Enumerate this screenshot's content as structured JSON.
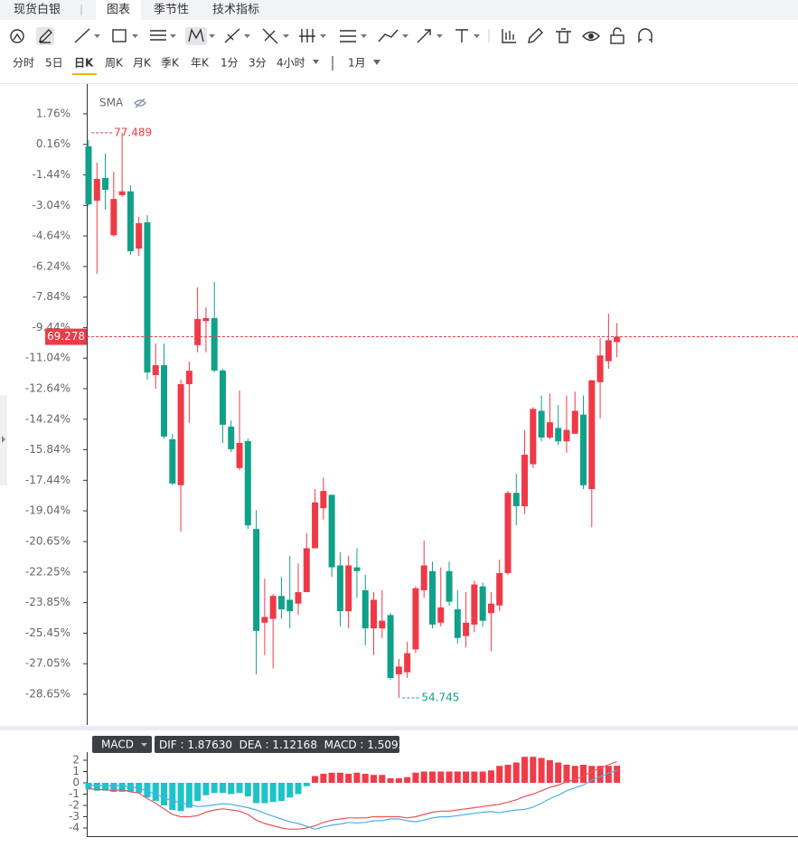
{
  "tabs": [
    "现货白银",
    "图表",
    "季节性",
    "技术指标"
  ],
  "periods": [
    "分时",
    "5日",
    "日K",
    "周K",
    "月K",
    "季K",
    "年K",
    "1分",
    "3分",
    "4小时"
  ],
  "range": "1月",
  "chart_data": [
    {
      "type": "candlestick",
      "indicator": "SMA",
      "up_color": "#ee3a47",
      "down_color": "#10a189",
      "open": [
        0.06,
        -2.79,
        -1.6,
        -4.6,
        -2.5,
        -2.3,
        -5.3,
        -3.92,
        -11.93,
        -11.41,
        -15.29,
        -17.7,
        -12.4,
        -10.36,
        -9.1,
        -8.94,
        -11.69,
        -14.63,
        -16.8,
        -15.39,
        -19.99,
        -24.9,
        -24.7,
        -23.5,
        -23.7,
        -23.9,
        -23.3,
        -21.0,
        -18.9,
        -18.2,
        -21.9,
        -24.3,
        -22.0,
        -23.2,
        -25.2,
        -25.2,
        -24.5,
        -27.6,
        -27.5,
        -26.3,
        -23.2,
        -22.2,
        -24.9,
        -22.2,
        -24.2,
        -25.6,
        -25.0,
        -23.0,
        -24.4,
        -24.0,
        -22.3,
        -18.1,
        -18.8,
        -16.6,
        -13.8,
        -15.2,
        -14.7,
        -15.4,
        -15.0,
        -14.0,
        -17.9,
        -12.3,
        -11.2,
        -10.2
      ],
      "close": [
        -2.98,
        -1.65,
        -2.22,
        -2.7,
        -2.3,
        -5.44,
        -3.97,
        -11.79,
        -11.41,
        -15.15,
        -17.61,
        -12.4,
        -11.7,
        -8.99,
        -8.94,
        -11.69,
        -14.53,
        -15.81,
        -15.48,
        -19.8,
        -25.33,
        -24.6,
        -23.5,
        -24.2,
        -24.3,
        -23.3,
        -21.0,
        -18.6,
        -18.0,
        -22.0,
        -24.3,
        -21.9,
        -22.2,
        -25.2,
        -23.7,
        -24.8,
        -27.8,
        -27.2,
        -26.5,
        -23.1,
        -21.9,
        -25.0,
        -24.1,
        -23.8,
        -25.7,
        -24.9,
        -22.9,
        -24.8,
        -23.9,
        -22.3,
        -18.1,
        -18.8,
        -16.1,
        -13.7,
        -15.2,
        -14.4,
        -15.4,
        -14.8,
        -13.8,
        -17.7,
        -12.2,
        -10.9,
        -10.1,
        -9.92
      ],
      "high": [
        0.39,
        -0.8,
        -0.32,
        -1.27,
        0.77,
        -1.98,
        -3.64,
        -3.55,
        -10.27,
        -10.27,
        -15.01,
        -12.17,
        -11.22,
        -7.33,
        -8.38,
        -7.05,
        -11.6,
        -14.3,
        -12.74,
        -15.25,
        -19.0,
        -22.6,
        -23.4,
        -22.5,
        -21.4,
        -21.8,
        -20.2,
        -17.9,
        -17.3,
        -18.2,
        -21.2,
        -21.4,
        -21.0,
        -22.4,
        -23.3,
        -23.2,
        -24.4,
        -26.8,
        -25.9,
        -23.0,
        -20.6,
        -21.7,
        -22.0,
        -21.7,
        -23.2,
        -23.3,
        -22.7,
        -22.8,
        -23.3,
        -21.6,
        -18.0,
        -17.1,
        -14.8,
        -13.6,
        -13.0,
        -12.9,
        -13.5,
        -13.0,
        -12.8,
        -13.0,
        -12.2,
        -10.0,
        -8.7,
        -9.2
      ],
      "low": [
        -3.07,
        -6.62,
        -3.26,
        -4.68,
        -2.6,
        -5.63,
        -5.68,
        -12.17,
        -12.64,
        -15.25,
        -17.7,
        -20.13,
        -14.43,
        -10.74,
        -10.74,
        -11.79,
        -15.48,
        -15.96,
        -16.9,
        -19.99,
        -27.6,
        -26.6,
        -27.3,
        -24.7,
        -25.2,
        -24.5,
        -23.3,
        -21.0,
        -19.5,
        -22.5,
        -25.1,
        -25.2,
        -23.6,
        -26.1,
        -26.6,
        -25.7,
        -27.9,
        -28.84,
        -27.8,
        -26.5,
        -23.6,
        -25.2,
        -25.1,
        -24.0,
        -26.0,
        -26.2,
        -25.4,
        -25.1,
        -26.4,
        -24.3,
        -22.4,
        -19.8,
        -19.2,
        -16.8,
        -15.4,
        -15.3,
        -15.6,
        -16.0,
        -15.0,
        -17.9,
        -19.9,
        -14.2,
        -11.6,
        -11.0
      ],
      "ylim": [
        -30.26,
        3.32
      ],
      "yticks": [
        {
          "value": 1.76,
          "label": "1.76%"
        },
        {
          "value": 0.16,
          "label": "0.16%"
        },
        {
          "value": -1.44,
          "label": "-1.44%"
        },
        {
          "value": -3.04,
          "label": "-3.04%"
        },
        {
          "value": -4.64,
          "label": "-4.64%"
        },
        {
          "value": -6.24,
          "label": "-6.24%"
        },
        {
          "value": -7.84,
          "label": "-7.84%"
        },
        {
          "value": -9.44,
          "label": "-9.44%"
        },
        {
          "value": -11.04,
          "label": "-11.04%"
        },
        {
          "value": -12.64,
          "label": "-12.64%"
        },
        {
          "value": -14.24,
          "label": "-14.24%"
        },
        {
          "value": -15.84,
          "label": "-15.84%"
        },
        {
          "value": -17.44,
          "label": "-17.44%"
        },
        {
          "value": -19.04,
          "label": "-19.04%"
        },
        {
          "value": -20.65,
          "label": "-20.65%"
        },
        {
          "value": -22.25,
          "label": "-22.25%"
        },
        {
          "value": -23.85,
          "label": "-23.85%"
        },
        {
          "value": -25.45,
          "label": "-25.45%"
        },
        {
          "value": -27.05,
          "label": "-27.05%"
        },
        {
          "value": -28.65,
          "label": "-28.65%"
        }
      ],
      "high_label": "77.489",
      "low_label": "54.745",
      "last_price_label": "69.278"
    },
    {
      "type": "macd",
      "title": "MACD",
      "pos_color": "#f03c48",
      "neg_color": "#1cc3c8",
      "histogram": {
        "name": "MACD",
        "status_value": "1.50923",
        "values": [
          -0.6,
          -0.7,
          -0.7,
          -0.8,
          -0.8,
          -0.8,
          -0.9,
          -1.3,
          -1.6,
          -2.0,
          -2.4,
          -2.5,
          -2.2,
          -1.6,
          -1.1,
          -0.9,
          -0.9,
          -1.0,
          -0.9,
          -1.2,
          -1.8,
          -1.8,
          -1.7,
          -1.6,
          -1.3,
          -1.0,
          -0.3,
          0.6,
          0.8,
          0.9,
          0.9,
          0.8,
          0.9,
          0.8,
          0.7,
          0.7,
          0.4,
          0.4,
          0.5,
          0.9,
          1.0,
          1.0,
          1.0,
          1.0,
          1.0,
          1.0,
          1.0,
          1.0,
          1.1,
          1.5,
          1.6,
          1.8,
          2.3,
          2.3,
          2.2,
          2.0,
          1.8,
          1.6,
          1.5,
          1.6,
          1.5,
          1.5,
          1.5,
          1.51
        ]
      },
      "series": [
        {
          "name": "DIF",
          "status_value": "1.87630",
          "color": "#e8545a",
          "values": [
            -0.5,
            -0.6,
            -0.6,
            -0.7,
            -0.6,
            -0.8,
            -0.9,
            -1.4,
            -1.8,
            -2.3,
            -2.8,
            -3.0,
            -3.0,
            -2.9,
            -2.6,
            -2.4,
            -2.3,
            -2.4,
            -2.5,
            -2.8,
            -3.3,
            -3.6,
            -3.8,
            -4.0,
            -4.1,
            -4.1,
            -4.0,
            -3.8,
            -3.5,
            -3.3,
            -3.2,
            -3.1,
            -3.1,
            -3.1,
            -3.0,
            -3.0,
            -3.0,
            -3.0,
            -3.1,
            -3.0,
            -2.8,
            -2.6,
            -2.5,
            -2.5,
            -2.4,
            -2.3,
            -2.2,
            -2.1,
            -2.0,
            -1.9,
            -1.7,
            -1.5,
            -1.2,
            -1.0,
            -0.7,
            -0.4,
            -0.2,
            0.1,
            0.3,
            0.6,
            1.0,
            1.3,
            1.6,
            1.8763
          ]
        },
        {
          "name": "DEA",
          "status_value": "1.12168",
          "color": "#4eaee8",
          "values": [
            -0.2,
            -0.25,
            -0.25,
            -0.3,
            -0.2,
            -0.4,
            -0.45,
            -0.75,
            -1.0,
            -1.3,
            -1.6,
            -1.75,
            -1.9,
            -2.1,
            -2.05,
            -1.95,
            -1.85,
            -1.9,
            -2.05,
            -2.2,
            -2.4,
            -2.7,
            -2.95,
            -3.2,
            -3.45,
            -3.6,
            -3.85,
            -4.1,
            -3.9,
            -3.75,
            -3.65,
            -3.5,
            -3.55,
            -3.5,
            -3.35,
            -3.35,
            -3.2,
            -3.2,
            -3.35,
            -3.45,
            -3.3,
            -3.1,
            -3.0,
            -3.0,
            -2.9,
            -2.8,
            -2.7,
            -2.6,
            -2.55,
            -2.65,
            -2.5,
            -2.4,
            -2.35,
            -2.15,
            -1.8,
            -1.4,
            -1.1,
            -0.7,
            -0.45,
            -0.2,
            0.25,
            0.55,
            0.85,
            1.12168
          ]
        }
      ],
      "ylim": [
        -4.72,
        2.72
      ],
      "yticks": [
        2,
        1,
        0,
        -1,
        -2,
        -3,
        -4
      ]
    }
  ]
}
